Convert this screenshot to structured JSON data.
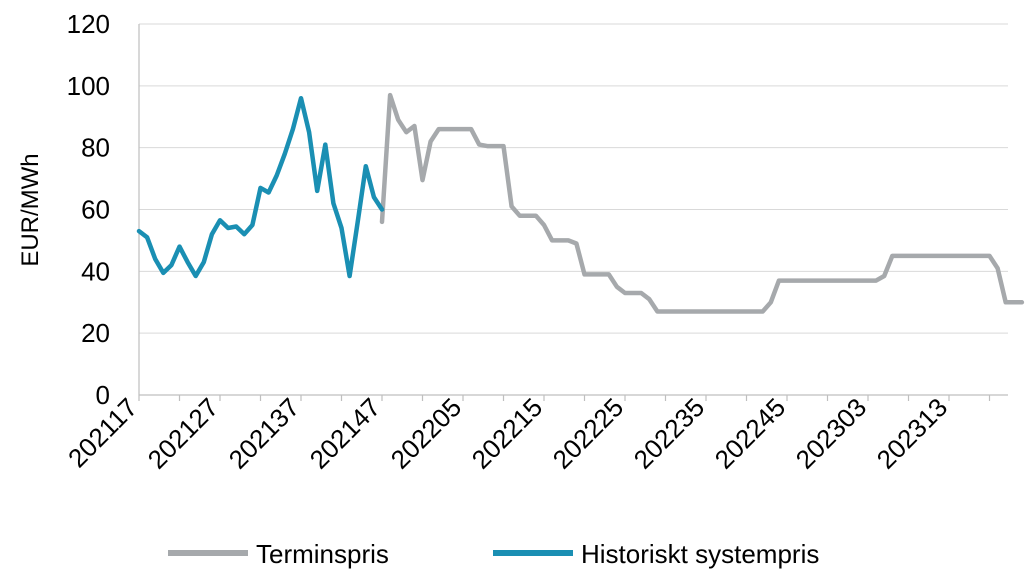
{
  "chart_data": {
    "type": "line",
    "ylabel": "EUR/MWh",
    "xlabel": "",
    "ylim": [
      0,
      120
    ],
    "yticks": [
      0,
      20,
      40,
      60,
      80,
      100,
      120
    ],
    "grid": "horizontal",
    "legend_position": "bottom",
    "x_count": 110,
    "tick_labels": [
      "202117",
      "202127",
      "202137",
      "202147",
      "202205",
      "202215",
      "202225",
      "202235",
      "202245",
      "202303",
      "202313"
    ],
    "colors": {
      "Terminspris": "#a6a9ac",
      "Historiskt systempris": "#1a8fb3",
      "grid": "#d9d9d9",
      "axis": "#bfbfbf"
    },
    "series": [
      {
        "name": "Terminspris",
        "x": [
          30,
          31,
          32,
          33,
          34,
          35,
          36,
          37,
          38,
          39,
          40,
          41,
          42,
          43,
          44,
          45,
          46,
          47,
          48,
          49,
          50,
          51,
          52,
          53,
          54,
          55,
          56,
          57,
          58,
          59,
          60,
          61,
          62,
          63,
          64,
          65,
          66,
          67,
          68,
          69,
          70,
          71,
          72,
          73,
          74,
          75,
          76,
          77,
          78,
          79,
          80,
          81,
          82,
          83,
          84,
          85,
          86,
          87,
          88,
          89,
          90,
          91,
          92,
          93,
          94,
          95,
          96,
          97,
          98,
          99,
          100,
          101,
          102,
          103,
          104,
          105,
          106,
          107,
          108,
          109
        ],
        "values": [
          56,
          97,
          89,
          85,
          87,
          69.5,
          82,
          86,
          86,
          86,
          86,
          86,
          81,
          80.5,
          80.5,
          80.5,
          61,
          58,
          58,
          58,
          55,
          50,
          50,
          50,
          49,
          39,
          39,
          39,
          39,
          35,
          33,
          33,
          33,
          31,
          27,
          27,
          27,
          27,
          27,
          27,
          27,
          27,
          27,
          27,
          27,
          27,
          27,
          27,
          30,
          37,
          37,
          37,
          37,
          37,
          37,
          37,
          37,
          37,
          37,
          37,
          37,
          37,
          38.5,
          45,
          45,
          45,
          45,
          45,
          45,
          45,
          45,
          45,
          45,
          45,
          45,
          45,
          41,
          30,
          30,
          30
        ]
      },
      {
        "name": "Historiskt systempris",
        "x": [
          0,
          1,
          2,
          3,
          4,
          5,
          6,
          7,
          8,
          9,
          10,
          11,
          12,
          13,
          14,
          15,
          16,
          17,
          18,
          19,
          20,
          21,
          22,
          23,
          24,
          25,
          26,
          27,
          28,
          29,
          30
        ],
        "values": [
          53,
          51,
          44,
          39.5,
          42,
          48,
          43,
          38.5,
          43,
          52,
          56.5,
          54,
          54.5,
          52,
          55,
          67,
          65.5,
          71,
          78,
          86,
          96,
          85,
          66,
          81,
          62,
          54,
          38.5,
          56,
          74,
          64,
          60
        ]
      }
    ]
  }
}
